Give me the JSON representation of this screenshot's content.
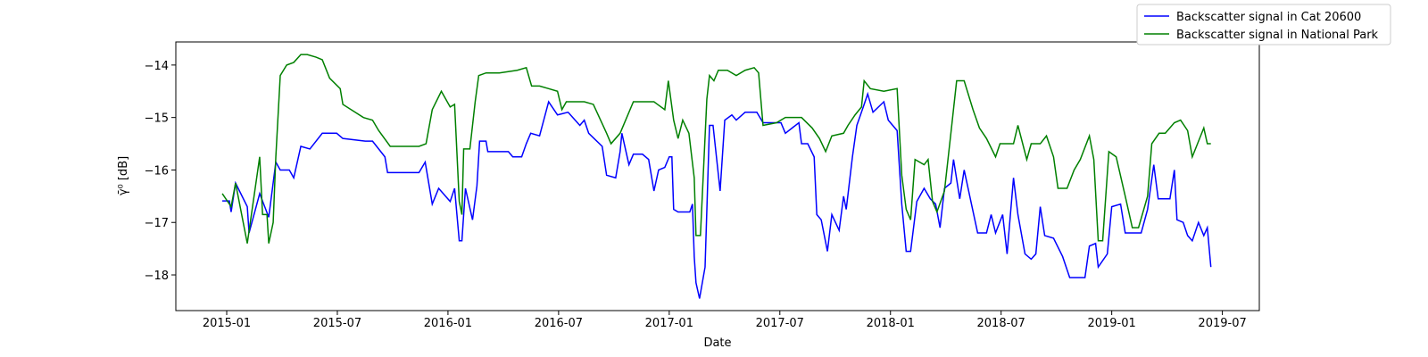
{
  "chart_data": {
    "type": "line",
    "x_label": "Date",
    "y_label": "γ̄⁰ [dB]",
    "xlim": [
      2014.77,
      2019.667
    ],
    "ylim": [
      -18.68,
      -13.56
    ],
    "xticks": [
      {
        "value": 2015.0,
        "label": "2015-01"
      },
      {
        "value": 2015.5,
        "label": "2015-07"
      },
      {
        "value": 2016.0,
        "label": "2016-01"
      },
      {
        "value": 2016.5,
        "label": "2016-07"
      },
      {
        "value": 2017.0,
        "label": "2017-01"
      },
      {
        "value": 2017.5,
        "label": "2017-07"
      },
      {
        "value": 2018.0,
        "label": "2018-01"
      },
      {
        "value": 2018.5,
        "label": "2018-07"
      },
      {
        "value": 2019.0,
        "label": "2019-01"
      },
      {
        "value": 2019.5,
        "label": "2019-07"
      }
    ],
    "yticks": [
      {
        "value": -14,
        "label": "−14"
      },
      {
        "value": -15,
        "label": "−15"
      },
      {
        "value": -16,
        "label": "−16"
      },
      {
        "value": -17,
        "label": "−17"
      },
      {
        "value": -18,
        "label": "−18"
      }
    ],
    "legend": "upper right",
    "series": [
      {
        "name": "Backscatter signal in Cat 20600",
        "color": "#0000ff",
        "x": [
          2014.98,
          2015.012,
          2015.02,
          2015.04,
          2015.093,
          2015.101,
          2015.149,
          2015.19,
          2015.222,
          2015.242,
          2015.283,
          2015.303,
          2015.335,
          2015.376,
          2015.432,
          2015.497,
          2015.525,
          2015.626,
          2015.659,
          2015.715,
          2015.727,
          2015.869,
          2015.897,
          2015.909,
          2015.929,
          2015.958,
          2016.01,
          2016.03,
          2016.051,
          2016.063,
          2016.079,
          2016.111,
          2016.131,
          2016.143,
          2016.172,
          2016.18,
          2016.273,
          2016.293,
          2016.333,
          2016.354,
          2016.374,
          2016.414,
          2016.455,
          2016.495,
          2016.543,
          2016.596,
          2016.616,
          2016.636,
          2016.697,
          2016.717,
          2016.758,
          2016.778,
          2016.786,
          2016.818,
          2016.838,
          2016.879,
          2016.907,
          2016.931,
          2016.952,
          2016.98,
          2017.0,
          2017.012,
          2017.02,
          2017.04,
          2017.093,
          2017.105,
          2017.113,
          2017.121,
          2017.137,
          2017.162,
          2017.182,
          2017.198,
          2017.23,
          2017.251,
          2017.283,
          2017.303,
          2017.343,
          2017.396,
          2017.424,
          2017.505,
          2017.525,
          2017.586,
          2017.598,
          2017.626,
          2017.655,
          2017.667,
          2017.687,
          2017.715,
          2017.735,
          2017.768,
          2017.788,
          2017.8,
          2017.828,
          2017.848,
          2017.877,
          2017.897,
          2017.921,
          2017.97,
          2017.99,
          2018.03,
          2018.051,
          2018.071,
          2018.091,
          2018.119,
          2018.152,
          2018.18,
          2018.204,
          2018.224,
          2018.244,
          2018.273,
          2018.285,
          2018.313,
          2018.333,
          2018.366,
          2018.394,
          2018.434,
          2018.455,
          2018.475,
          2018.507,
          2018.527,
          2018.556,
          2018.576,
          2018.608,
          2018.636,
          2018.657,
          2018.677,
          2018.697,
          2018.737,
          2018.778,
          2018.81,
          2018.879,
          2018.899,
          2018.927,
          2018.939,
          2018.98,
          2019.0,
          2019.04,
          2019.061,
          2019.133,
          2019.162,
          2019.19,
          2019.21,
          2019.263,
          2019.283,
          2019.295,
          2019.323,
          2019.343,
          2019.364,
          2019.392,
          2019.416,
          2019.432,
          2019.448
        ],
        "values": [
          -16.59,
          -16.59,
          -16.8,
          -16.25,
          -16.7,
          -17.2,
          -16.45,
          -16.9,
          -15.85,
          -16.0,
          -16.0,
          -16.15,
          -15.55,
          -15.6,
          -15.3,
          -15.3,
          -15.4,
          -15.45,
          -15.45,
          -15.75,
          -16.05,
          -16.05,
          -15.85,
          -16.15,
          -16.65,
          -16.35,
          -16.6,
          -16.35,
          -17.35,
          -17.35,
          -16.35,
          -16.95,
          -16.3,
          -15.45,
          -15.45,
          -15.65,
          -15.65,
          -15.75,
          -15.75,
          -15.5,
          -15.3,
          -15.35,
          -14.7,
          -14.95,
          -14.9,
          -15.15,
          -15.05,
          -15.3,
          -15.55,
          -16.1,
          -16.15,
          -15.65,
          -15.3,
          -15.9,
          -15.7,
          -15.7,
          -15.8,
          -16.4,
          -16.0,
          -15.95,
          -15.75,
          -15.75,
          -16.75,
          -16.8,
          -16.8,
          -16.65,
          -17.65,
          -18.15,
          -18.45,
          -17.85,
          -15.15,
          -15.15,
          -16.4,
          -15.05,
          -14.95,
          -15.05,
          -14.9,
          -14.9,
          -15.1,
          -15.1,
          -15.3,
          -15.1,
          -15.5,
          -15.5,
          -15.75,
          -16.85,
          -16.95,
          -17.55,
          -16.85,
          -17.15,
          -16.5,
          -16.75,
          -15.75,
          -15.15,
          -14.8,
          -14.55,
          -14.9,
          -14.7,
          -15.05,
          -15.25,
          -16.65,
          -17.55,
          -17.55,
          -16.6,
          -16.35,
          -16.55,
          -16.65,
          -17.1,
          -16.35,
          -16.25,
          -15.8,
          -16.55,
          -16.0,
          -16.65,
          -17.2,
          -17.2,
          -16.85,
          -17.2,
          -16.85,
          -17.6,
          -16.15,
          -16.85,
          -17.6,
          -17.7,
          -17.6,
          -16.7,
          -17.25,
          -17.3,
          -17.65,
          -18.05,
          -18.05,
          -17.45,
          -17.4,
          -17.85,
          -17.6,
          -16.7,
          -16.65,
          -17.2,
          -17.2,
          -16.75,
          -15.9,
          -16.55,
          -16.55,
          -16.0,
          -16.95,
          -17.0,
          -17.25,
          -17.35,
          -17.0,
          -17.25,
          -17.1,
          -17.85
        ]
      },
      {
        "name": "Backscatter signal in National Park",
        "color": "#008000",
        "x": [
          2014.98,
          2015.02,
          2015.04,
          2015.093,
          2015.149,
          2015.162,
          2015.182,
          2015.19,
          2015.21,
          2015.222,
          2015.242,
          2015.271,
          2015.303,
          2015.335,
          2015.364,
          2015.404,
          2015.432,
          2015.465,
          2015.513,
          2015.525,
          2015.618,
          2015.659,
          2015.687,
          2015.739,
          2015.869,
          2015.901,
          2015.929,
          2015.97,
          2016.01,
          2016.03,
          2016.051,
          2016.063,
          2016.071,
          2016.099,
          2016.123,
          2016.139,
          2016.172,
          2016.232,
          2016.313,
          2016.354,
          2016.378,
          2016.414,
          2016.455,
          2016.495,
          2016.515,
          2016.535,
          2016.596,
          2016.616,
          2016.657,
          2016.717,
          2016.737,
          2016.778,
          2016.838,
          2016.931,
          2016.947,
          2016.98,
          2016.996,
          2017.02,
          2017.04,
          2017.061,
          2017.089,
          2017.113,
          2017.121,
          2017.141,
          2017.17,
          2017.182,
          2017.202,
          2017.222,
          2017.263,
          2017.303,
          2017.343,
          2017.384,
          2017.404,
          2017.424,
          2017.485,
          2017.525,
          2017.598,
          2017.646,
          2017.679,
          2017.707,
          2017.735,
          2017.788,
          2017.808,
          2017.84,
          2017.869,
          2017.881,
          2017.909,
          2017.97,
          2018.03,
          2018.051,
          2018.071,
          2018.091,
          2018.111,
          2018.152,
          2018.17,
          2018.19,
          2018.21,
          2018.244,
          2018.273,
          2018.299,
          2018.333,
          2018.373,
          2018.402,
          2018.434,
          2018.475,
          2018.495,
          2018.556,
          2018.576,
          2018.616,
          2018.636,
          2018.677,
          2018.705,
          2018.737,
          2018.757,
          2018.798,
          2018.83,
          2018.858,
          2018.899,
          2018.919,
          2018.939,
          2018.959,
          2018.987,
          2019.02,
          2019.061,
          2019.093,
          2019.121,
          2019.162,
          2019.181,
          2019.214,
          2019.242,
          2019.283,
          2019.311,
          2019.343,
          2019.364,
          2019.383,
          2019.416,
          2019.432,
          2019.448
        ],
        "values": [
          -16.45,
          -16.7,
          -16.25,
          -17.4,
          -15.75,
          -16.85,
          -16.85,
          -17.4,
          -17.0,
          -15.75,
          -14.2,
          -14.0,
          -13.95,
          -13.8,
          -13.8,
          -13.85,
          -13.9,
          -14.25,
          -14.45,
          -14.75,
          -15.0,
          -15.05,
          -15.25,
          -15.55,
          -15.55,
          -15.5,
          -14.85,
          -14.5,
          -14.8,
          -14.75,
          -16.6,
          -16.85,
          -15.6,
          -15.6,
          -14.7,
          -14.2,
          -14.15,
          -14.15,
          -14.1,
          -14.05,
          -14.4,
          -14.4,
          -14.45,
          -14.5,
          -14.85,
          -14.7,
          -14.7,
          -14.7,
          -14.75,
          -15.3,
          -15.5,
          -15.3,
          -14.7,
          -14.7,
          -14.75,
          -14.85,
          -14.3,
          -15.05,
          -15.4,
          -15.05,
          -15.3,
          -16.15,
          -17.25,
          -17.25,
          -14.65,
          -14.2,
          -14.3,
          -14.1,
          -14.1,
          -14.2,
          -14.1,
          -14.05,
          -14.15,
          -15.15,
          -15.1,
          -15.0,
          -15.0,
          -15.2,
          -15.4,
          -15.65,
          -15.35,
          -15.3,
          -15.15,
          -14.95,
          -14.8,
          -14.3,
          -14.45,
          -14.5,
          -14.45,
          -16.1,
          -16.75,
          -16.95,
          -15.8,
          -15.9,
          -15.8,
          -16.6,
          -16.8,
          -16.4,
          -15.3,
          -14.3,
          -14.3,
          -14.85,
          -15.2,
          -15.4,
          -15.75,
          -15.5,
          -15.5,
          -15.15,
          -15.8,
          -15.5,
          -15.5,
          -15.35,
          -15.75,
          -16.35,
          -16.35,
          -16.0,
          -15.8,
          -15.35,
          -15.8,
          -17.35,
          -17.35,
          -15.65,
          -15.75,
          -16.5,
          -17.1,
          -17.1,
          -16.5,
          -15.5,
          -15.3,
          -15.3,
          -15.1,
          -15.05,
          -15.25,
          -15.75,
          -15.55,
          -15.2,
          -15.5,
          -15.5
        ]
      }
    ]
  }
}
